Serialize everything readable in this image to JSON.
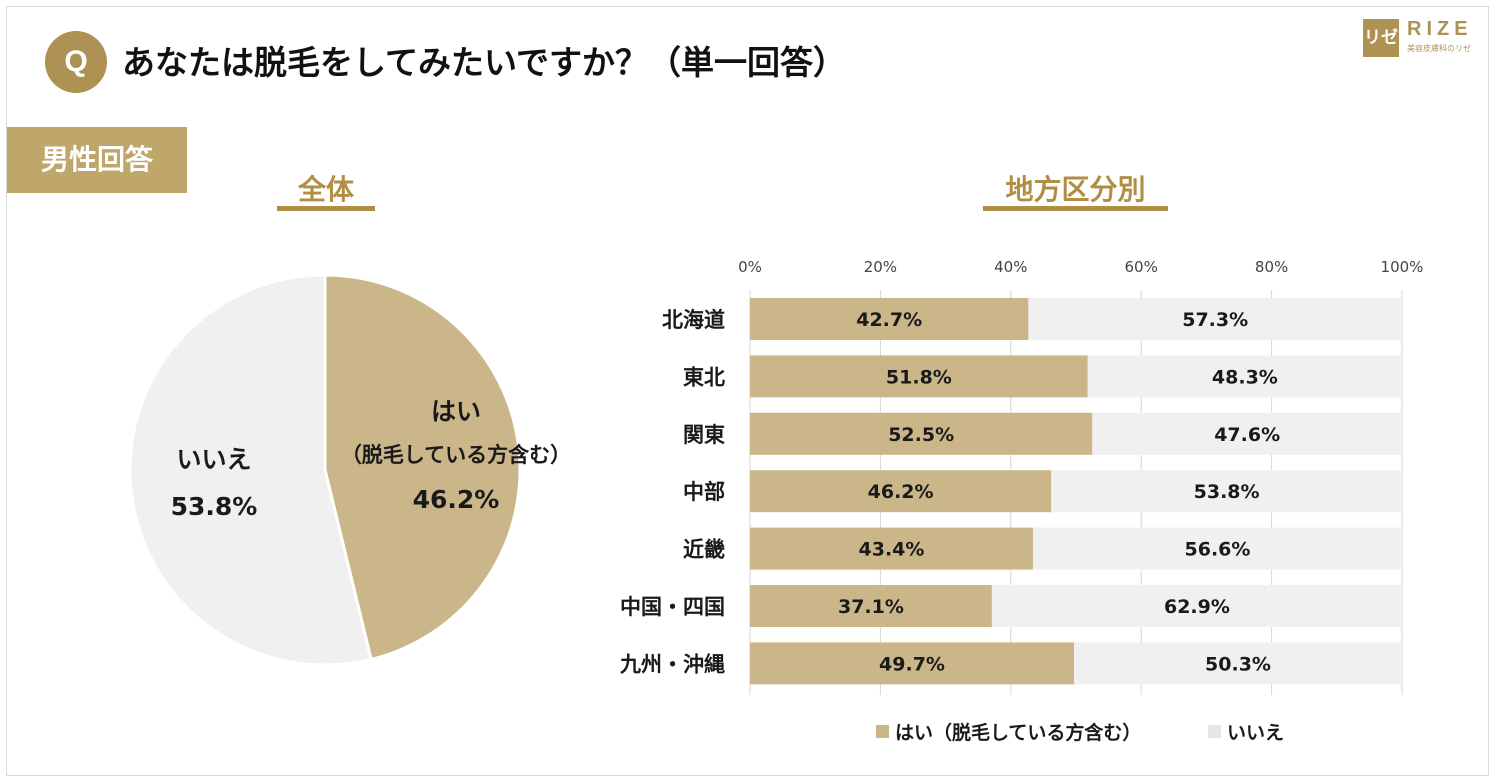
{
  "header": {
    "badge": "Q",
    "question": "あなたは脱毛をしてみたいですか？（単一回答）"
  },
  "logo": {
    "mark": "リゼ",
    "word": "RIZE",
    "sub": "美容皮膚科のリゼ"
  },
  "section_tag": "男性回答",
  "left_heading": "全体",
  "right_heading": "地方区分別",
  "colors": {
    "gold": "#ad9253",
    "gold_light": "#cbb68a",
    "gray": "#f0f0f0",
    "grid": "#d6d6d6"
  },
  "chart_data": [
    {
      "type": "pie",
      "title": "全体",
      "slices": [
        {
          "label": "はい",
          "sublabel": "（脱毛している方含む）",
          "value": 46.2,
          "display": "46.2%"
        },
        {
          "label": "いいえ",
          "sublabel": "",
          "value": 53.8,
          "display": "53.8%"
        }
      ]
    },
    {
      "type": "bar",
      "orientation": "horizontal",
      "stacked": true,
      "title": "地方区分別",
      "categories": [
        "北海道",
        "東北",
        "関東",
        "中部",
        "近畿",
        "中国・四国",
        "九州・沖縄"
      ],
      "series": [
        {
          "name": "はい（脱毛している方含む）",
          "values": [
            42.7,
            51.8,
            52.5,
            46.2,
            43.4,
            37.1,
            49.7
          ],
          "labels": [
            "42.7%",
            "51.8%",
            "52.5%",
            "46.2%",
            "43.4%",
            "37.1%",
            "49.7%"
          ]
        },
        {
          "name": "いいえ",
          "values": [
            57.3,
            48.3,
            47.6,
            53.8,
            56.6,
            62.9,
            50.3
          ],
          "labels": [
            "57.3%",
            "48.3%",
            "47.6%",
            "53.8%",
            "56.6%",
            "62.9%",
            "50.3%"
          ]
        }
      ],
      "xlim": [
        0,
        100
      ],
      "xticks": [
        "0%",
        "20%",
        "40%",
        "60%",
        "80%",
        "100%"
      ],
      "legend_position": "bottom"
    }
  ]
}
